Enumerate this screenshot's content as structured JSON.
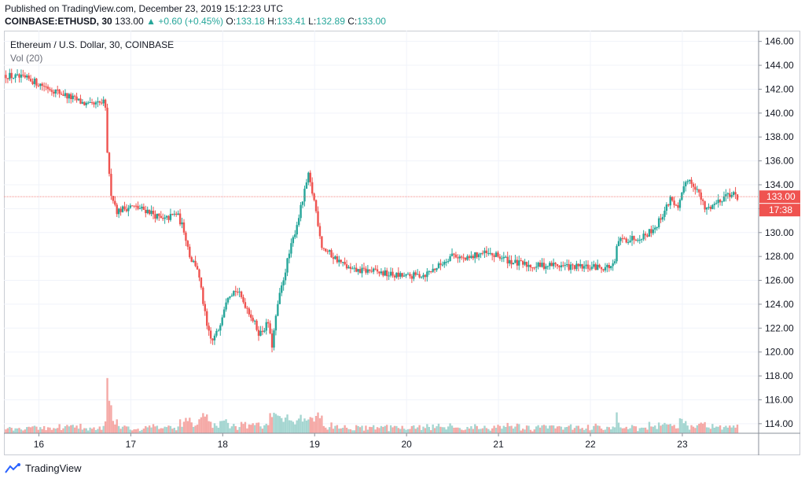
{
  "header": {
    "published": "Published on TradingView.com, December 23, 2019 15:12:23 UTC",
    "symbol": "COINBASE:ETHUSD, 30",
    "last": "133.00",
    "change": "+0.60 (+0.45%)",
    "o_label": "O:",
    "o": "133.18",
    "h_label": "H:",
    "h": "133.41",
    "l_label": "L:",
    "l": "132.89",
    "c_label": "C:",
    "c": "133.00"
  },
  "legend": {
    "title": "Ethereum / U.S. Dollar, 30, COINBASE",
    "volume": "Vol (20)"
  },
  "price_tag": {
    "price": "133.00",
    "countdown": "17:38"
  },
  "brand": "TradingView",
  "colors": {
    "up": "#26a69a",
    "down": "#ef5350",
    "vol_up": "#a5d6d1",
    "vol_down": "#f5a9a6",
    "tag": "#ef5350"
  },
  "chart_data": {
    "type": "candlestick",
    "title": "Ethereum / U.S. Dollar, 30, COINBASE",
    "x_tick_labels": [
      "16",
      "17",
      "18",
      "19",
      "20",
      "21",
      "22",
      "23"
    ],
    "x_tick_days": [
      16,
      17,
      18,
      19,
      20,
      21,
      22,
      23
    ],
    "x_range_days": [
      15.62,
      23.83
    ],
    "y_tick_labels": [
      "114.00",
      "116.00",
      "118.00",
      "120.00",
      "122.00",
      "124.00",
      "126.00",
      "128.00",
      "130.00",
      "132.00",
      "134.00",
      "136.00",
      "138.00",
      "140.00",
      "142.00",
      "144.00",
      "146.00"
    ],
    "y_ticks": [
      114,
      116,
      118,
      120,
      122,
      124,
      126,
      128,
      130,
      132,
      134,
      136,
      138,
      140,
      142,
      144,
      146
    ],
    "ylim": [
      113.2,
      146.9
    ],
    "grid": true,
    "price_series": {
      "name": "ETHUSD",
      "day": [
        15.62,
        15.9,
        16.2,
        16.55,
        16.72,
        16.75,
        16.78,
        16.85,
        17.0,
        17.2,
        17.35,
        17.5,
        17.58,
        17.65,
        17.72,
        17.78,
        17.83,
        17.88,
        17.95,
        18.05,
        18.15,
        18.28,
        18.4,
        18.5,
        18.53,
        18.6,
        18.7,
        18.8,
        18.88,
        18.93,
        19.0,
        19.08,
        19.2,
        19.4,
        19.6,
        19.8,
        20.0,
        20.2,
        20.35,
        20.5,
        20.65,
        20.8,
        21.0,
        21.2,
        21.4,
        21.6,
        21.8,
        22.0,
        22.15,
        22.26,
        22.3,
        22.45,
        22.6,
        22.72,
        22.82,
        22.88,
        22.95,
        23.05,
        23.15,
        23.25,
        23.35,
        23.5,
        23.6
      ],
      "price": [
        143.2,
        142.8,
        141.8,
        140.6,
        140.9,
        136.0,
        133.5,
        131.8,
        132.2,
        131.8,
        131.0,
        131.6,
        130.2,
        127.8,
        127.2,
        124.5,
        122.0,
        120.8,
        121.8,
        124.8,
        125.2,
        123.5,
        121.5,
        122.5,
        120.2,
        124.0,
        127.5,
        130.5,
        133.0,
        134.8,
        132.5,
        128.8,
        128.0,
        126.8,
        126.8,
        126.5,
        126.3,
        126.5,
        127.2,
        128.2,
        127.7,
        128.3,
        128.0,
        127.4,
        127.2,
        127.3,
        127.1,
        127.1,
        127.1,
        127.2,
        129.3,
        129.5,
        129.8,
        130.6,
        132.0,
        133.0,
        131.8,
        134.6,
        133.8,
        131.9,
        132.4,
        133.3,
        133.0
      ]
    },
    "volume_series": {
      "name": "Vol (20)"
    }
  }
}
